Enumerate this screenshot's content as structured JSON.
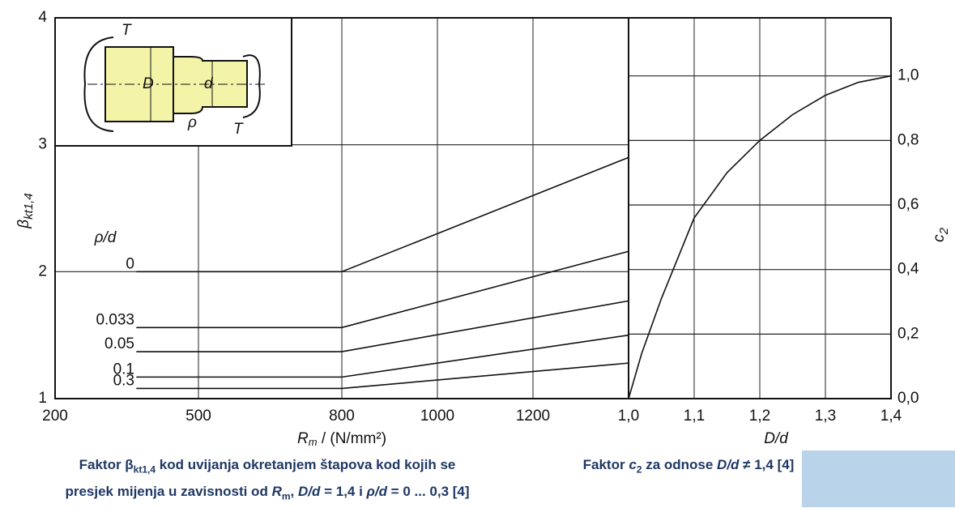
{
  "chart_data": [
    {
      "type": "line",
      "ylabel": "β",
      "ylabel_sub": "kt1,4",
      "xlabel": "R",
      "xlabel_sub": "m",
      "xlabel_rest": " / (N/mm²)",
      "legend_title": "ρ/d",
      "x": [
        370,
        800,
        1400
      ],
      "series": [
        {
          "name": "0",
          "color": "#111111",
          "values": [
            2.0,
            2.0,
            2.9
          ]
        },
        {
          "name": "0.033",
          "color": "#111111",
          "values": [
            1.56,
            1.56,
            2.16
          ]
        },
        {
          "name": "0.05",
          "color": "#111111",
          "values": [
            1.37,
            1.37,
            1.77
          ]
        },
        {
          "name": "0.1",
          "color": "#111111",
          "values": [
            1.17,
            1.17,
            1.5
          ]
        },
        {
          "name": "0.3",
          "color": "#111111",
          "values": [
            1.08,
            1.08,
            1.28
          ]
        }
      ],
      "xlim": [
        200,
        1400
      ],
      "xticks": [
        200,
        500,
        800,
        1000,
        1200
      ],
      "ylim": [
        1,
        4
      ],
      "yticks": [
        1,
        2,
        3,
        4
      ],
      "grid": true,
      "caption": [
        [
          {
            "text": "Faktor β"
          },
          {
            "text": "kt1,4",
            "sub": true
          },
          {
            "text": " kod uvijanja okretanjem štapova kod kojih se"
          }
        ],
        [
          {
            "text": "presjek mijenja u zavisnosti od "
          },
          {
            "text": "R",
            "italic": true
          },
          {
            "text": "m",
            "sub": true
          },
          {
            "text": ", "
          },
          {
            "text": "D/d",
            "italic": true
          },
          {
            "text": " = 1,4 i "
          },
          {
            "text": "ρ/d",
            "italic": true
          },
          {
            "text": " = 0 ... 0,3 [4]"
          }
        ]
      ],
      "inset_labels": [
        "T",
        "D",
        "d",
        "ρ",
        "T"
      ]
    },
    {
      "type": "line",
      "xlabel": "D/d",
      "ylabel": "c",
      "ylabel_sub": "2",
      "x": [
        1.0,
        1.02,
        1.05,
        1.1,
        1.15,
        1.2,
        1.25,
        1.3,
        1.35,
        1.4
      ],
      "series": [
        {
          "color": "#111111",
          "values": [
            0,
            0.14,
            0.31,
            0.56,
            0.7,
            0.8,
            0.88,
            0.94,
            0.98,
            1.0
          ]
        }
      ],
      "xlim": [
        1.0,
        1.4
      ],
      "xticks": [
        {
          "value": 1.0,
          "label": "1,0"
        },
        {
          "value": 1.1,
          "label": "1,1"
        },
        {
          "value": 1.2,
          "label": "1,2"
        },
        {
          "value": 1.3,
          "label": "1,3"
        },
        {
          "value": 1.4,
          "label": "1,4"
        }
      ],
      "ylim": [
        0,
        1.18
      ],
      "yticks": [
        {
          "value": 0,
          "label": "0,0"
        },
        {
          "value": 0.2,
          "label": "0,2"
        },
        {
          "value": 0.4,
          "label": "0,4"
        },
        {
          "value": 0.6,
          "label": "0,6"
        },
        {
          "value": 0.8,
          "label": "0,8"
        },
        {
          "value": 1.0,
          "label": "1,0"
        }
      ],
      "grid": true,
      "caption": [
        [
          {
            "text": "Faktor "
          },
          {
            "text": "c",
            "italic": true
          },
          {
            "text": "2",
            "sub": true
          },
          {
            "text": " za odnose "
          },
          {
            "text": "D/d",
            "italic": true
          },
          {
            "text": " ≠ 1,4 [4]"
          }
        ]
      ]
    }
  ]
}
